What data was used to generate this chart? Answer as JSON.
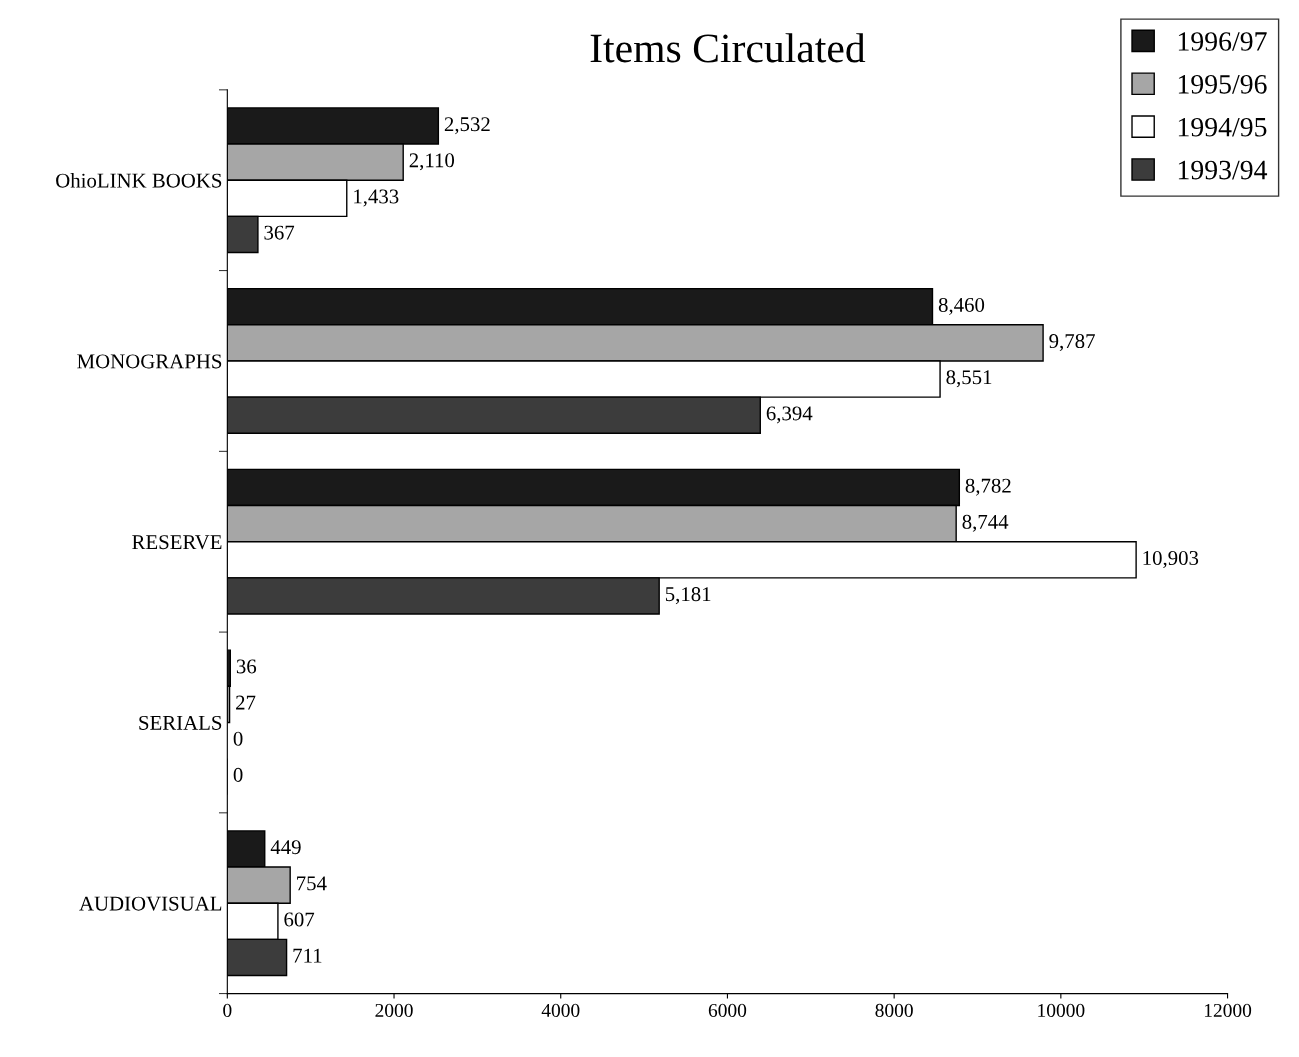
{
  "chart_data": {
    "type": "bar",
    "orientation": "horizontal",
    "title": "Items Circulated",
    "categories": [
      "OhioLINK BOOKS",
      "MONOGRAPHS",
      "RESERVE",
      "SERIALS",
      "AUDIOVISUAL"
    ],
    "series": [
      {
        "name": "1996/97",
        "color": "#1a1a1a",
        "values": [
          2532,
          8460,
          8782,
          36,
          449
        ],
        "value_labels": [
          "2,532",
          "8,460",
          "8,782",
          "36",
          "449"
        ]
      },
      {
        "name": "1995/96",
        "color": "#a6a6a6",
        "values": [
          2110,
          9787,
          8744,
          27,
          754
        ],
        "value_labels": [
          "2,110",
          "9,787",
          "8,744",
          "27",
          "754"
        ]
      },
      {
        "name": "1994/95",
        "color": "#ffffff",
        "values": [
          1433,
          8551,
          10903,
          0,
          607
        ],
        "value_labels": [
          "1,433",
          "8,551",
          "10,903",
          "0",
          "607"
        ]
      },
      {
        "name": "1993/94",
        "color": "#3c3c3c",
        "values": [
          367,
          6394,
          5181,
          0,
          711
        ],
        "value_labels": [
          "367",
          "6,394",
          "5,181",
          "0",
          "711"
        ]
      }
    ],
    "xlim": [
      0,
      12000
    ],
    "xticks": [
      0,
      2000,
      4000,
      6000,
      8000,
      10000,
      12000
    ],
    "grid": false,
    "legend": "top right"
  }
}
